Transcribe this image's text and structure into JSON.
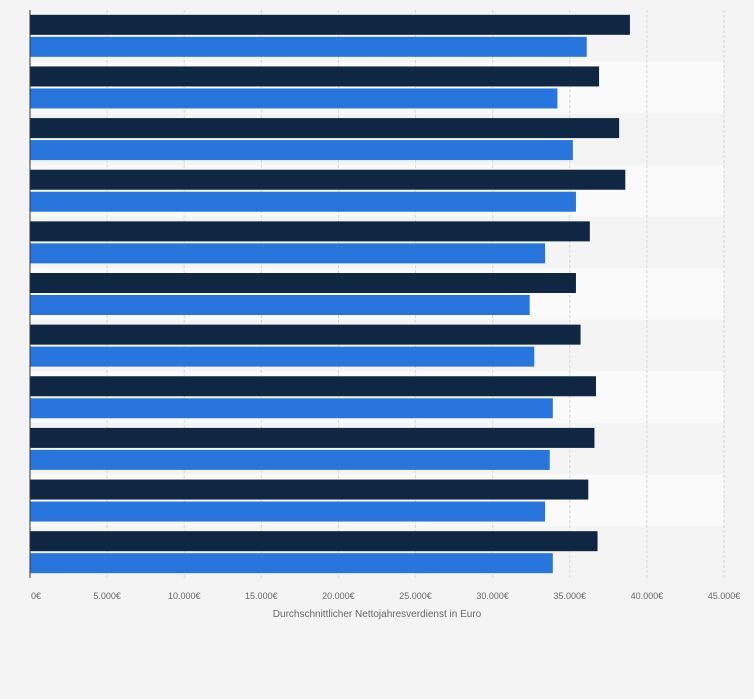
{
  "chart_data": {
    "type": "bar",
    "orientation": "horizontal",
    "xlabel": "Durchschnittlicher Nettojahresverdienst in Euro",
    "xlim": [
      0,
      45000
    ],
    "x_ticks": [
      0,
      5000,
      10000,
      15000,
      20000,
      25000,
      30000,
      35000,
      40000,
      45000
    ],
    "x_tick_labels": [
      "0€",
      "5.000€",
      "10.000€",
      "15.000€",
      "20.000€",
      "25.000€",
      "30.000€",
      "35.000€",
      "40.000€",
      "45.000€"
    ],
    "grid": true,
    "category_count": 11,
    "series": [
      {
        "color": "#0f2742",
        "values": [
          38900,
          36900,
          38200,
          38600,
          36300,
          35400,
          35700,
          36700,
          36600,
          36200,
          36800
        ]
      },
      {
        "color": "#2876dd",
        "values": [
          36100,
          34200,
          35200,
          35400,
          33400,
          32400,
          32700,
          33900,
          33700,
          33400,
          33900
        ]
      }
    ]
  }
}
